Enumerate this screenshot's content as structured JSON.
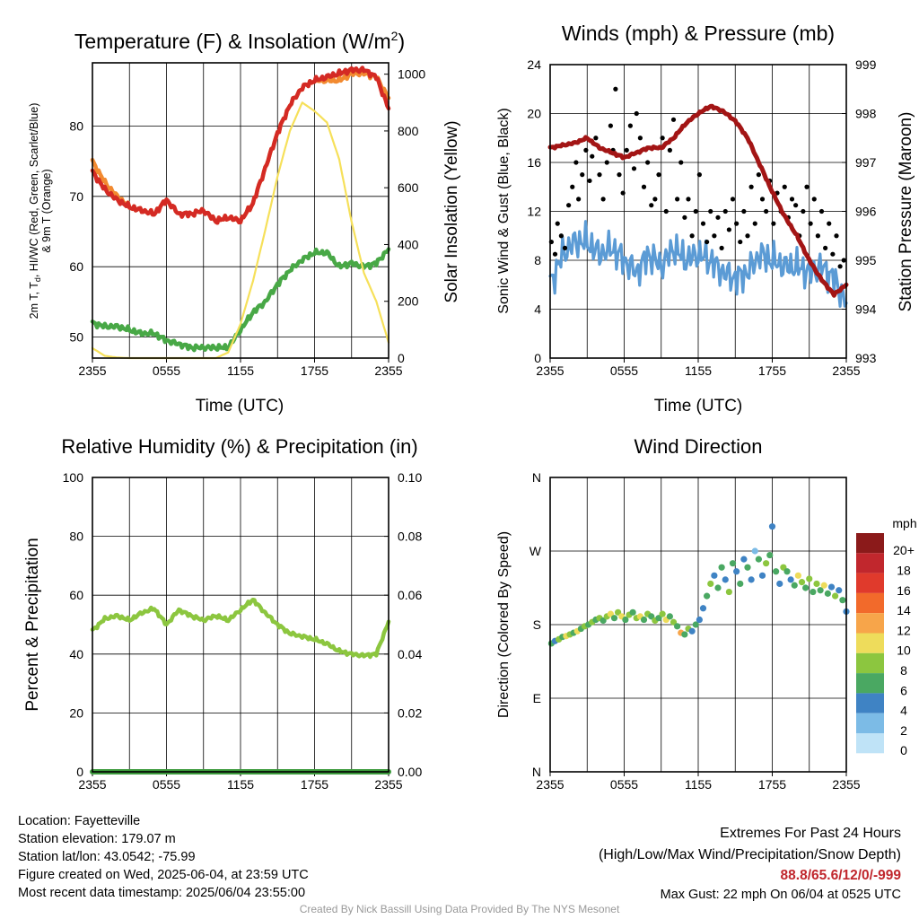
{
  "chart_data": [
    {
      "type": "line",
      "title": "Temperature (F) & Insolation (W/m²)",
      "title_main": "Temperature (F) & Insolation (W/m",
      "title_sup": "2",
      "title_end": ")",
      "xlabel": "Time (UTC)",
      "ylabel": "2m T, Td, HI/WC (Red, Green, Scarlet/Blue) & 9m T (Orange)",
      "ylabel_line1": "2m T, T",
      "ylabel_sub": "d",
      "ylabel_line1_end": ", HI/WC (Red, Green, Scarlet/Blue)",
      "ylabel_line2": "& 9m T (Orange)",
      "y2label": "Solar Insolation (Yellow)",
      "xticks": [
        "2355",
        "0555",
        "1155",
        "1755",
        "2355"
      ],
      "ylim": [
        47,
        89
      ],
      "yticks": [
        "50",
        "60",
        "70",
        "80"
      ],
      "y2lim": [
        0,
        1040
      ],
      "y2ticks": [
        "0",
        "200",
        "400",
        "600",
        "800",
        "1000"
      ],
      "x_hours": [
        0,
        1,
        2,
        3,
        4,
        5,
        6,
        7,
        8,
        9,
        10,
        11,
        12,
        13,
        14,
        15,
        16,
        17,
        18,
        19,
        20,
        21,
        22,
        23,
        24
      ],
      "series": [
        {
          "color": "#f28a30",
          "axis": "left",
          "values": [
            75,
            72,
            70,
            68.5,
            68,
            67.5,
            69.5,
            67.5,
            67.5,
            68,
            66.5,
            67,
            66.5,
            69,
            74,
            79,
            83,
            85.5,
            86.5,
            86.5,
            86.5,
            87.5,
            87.5,
            87,
            84
          ]
        },
        {
          "color": "#d42a24",
          "axis": "left",
          "values": [
            73.5,
            71,
            69.5,
            68.5,
            68,
            67.5,
            69.5,
            67.5,
            67.5,
            68,
            66.5,
            67,
            66.5,
            69,
            74,
            79,
            83,
            85.5,
            86.5,
            87,
            87.5,
            88,
            88,
            87,
            82.5
          ]
        },
        {
          "color": "#48a846",
          "axis": "left",
          "values": [
            52,
            51.5,
            51.5,
            51,
            50.5,
            50.5,
            49.5,
            49,
            48.5,
            48.5,
            48.5,
            48.5,
            51,
            53.5,
            55,
            57.5,
            59.5,
            61,
            62,
            62,
            60,
            60.5,
            60,
            60.5,
            62.5
          ]
        },
        {
          "color": "#f6e05a",
          "axis": "right",
          "values": [
            35,
            8,
            2,
            0,
            0,
            0,
            0,
            0,
            0,
            0,
            0,
            20,
            120,
            270,
            450,
            640,
            800,
            900,
            870,
            830,
            700,
            480,
            300,
            200,
            55
          ]
        }
      ]
    },
    {
      "type": "line",
      "title": "Winds (mph) & Pressure (mb)",
      "xlabel": "Time (UTC)",
      "ylabel": "Sonic Wind & Gust (Blue, Black)",
      "y2label": "Station Pressure (Maroon)",
      "xticks": [
        "2355",
        "0555",
        "1155",
        "1755",
        "2355"
      ],
      "ylim": [
        0,
        24
      ],
      "yticks": [
        "0",
        "4",
        "8",
        "12",
        "16",
        "20",
        "24"
      ],
      "y2lim": [
        993,
        999
      ],
      "y2ticks": [
        "993",
        "994",
        "995",
        "996",
        "997",
        "998",
        "999"
      ],
      "x_hours": [
        0,
        1,
        2,
        3,
        4,
        5,
        6,
        7,
        8,
        9,
        10,
        11,
        12,
        13,
        14,
        15,
        16,
        17,
        18,
        19,
        20,
        21,
        22,
        23,
        24
      ],
      "series": [
        {
          "color": "#5b9bd5",
          "axis": "left",
          "values": [
            6,
            8.5,
            9.5,
            9.5,
            8.5,
            9,
            8,
            7,
            8.5,
            7.5,
            9,
            8,
            8.5,
            8,
            7,
            6.5,
            7,
            8.5,
            8,
            7.5,
            7.5,
            7,
            7.5,
            6.5,
            4.5
          ]
        },
        {
          "color": "#a31515",
          "axis": "right",
          "values": [
            997.3,
            997.35,
            997.4,
            997.5,
            997.3,
            997.2,
            997.1,
            997.2,
            997.3,
            997.3,
            997.5,
            997.8,
            998.0,
            998.15,
            998.05,
            997.85,
            997.5,
            996.95,
            996.4,
            995.9,
            995.5,
            995.0,
            994.6,
            994.3,
            994.5
          ]
        }
      ],
      "gust_points": [
        [
          0.1,
          9.5
        ],
        [
          0.4,
          8.5
        ],
        [
          0.6,
          11
        ],
        [
          0.9,
          10
        ],
        [
          1.2,
          9
        ],
        [
          1.5,
          12.5
        ],
        [
          1.8,
          14
        ],
        [
          2.1,
          16
        ],
        [
          2.3,
          13
        ],
        [
          2.6,
          15
        ],
        [
          2.9,
          17
        ],
        [
          3.2,
          14.5
        ],
        [
          3.4,
          16.5
        ],
        [
          3.7,
          18
        ],
        [
          4.0,
          15
        ],
        [
          4.3,
          13
        ],
        [
          4.6,
          16
        ],
        [
          4.9,
          19
        ],
        [
          5.1,
          17
        ],
        [
          5.3,
          22
        ],
        [
          5.6,
          15
        ],
        [
          5.9,
          13.5
        ],
        [
          6.2,
          17
        ],
        [
          6.5,
          19
        ],
        [
          6.8,
          15.5
        ],
        [
          7.0,
          20
        ],
        [
          7.3,
          18
        ],
        [
          7.6,
          14
        ],
        [
          7.9,
          16
        ],
        [
          8.2,
          12.5
        ],
        [
          8.5,
          13
        ],
        [
          8.8,
          15
        ],
        [
          9.1,
          18
        ],
        [
          9.4,
          12
        ],
        [
          9.7,
          17
        ],
        [
          10.0,
          19.5
        ],
        [
          10.3,
          13
        ],
        [
          10.6,
          16
        ],
        [
          10.9,
          11.5
        ],
        [
          11.2,
          13
        ],
        [
          11.5,
          10
        ],
        [
          11.8,
          12
        ],
        [
          12.1,
          15
        ],
        [
          12.4,
          11
        ],
        [
          12.7,
          9.5
        ],
        [
          13.0,
          12
        ],
        [
          13.3,
          10
        ],
        [
          13.6,
          11.5
        ],
        [
          13.9,
          9
        ],
        [
          14.2,
          12
        ],
        [
          14.5,
          10.5
        ],
        [
          14.8,
          13
        ],
        [
          15.1,
          11
        ],
        [
          15.4,
          9.5
        ],
        [
          15.7,
          12
        ],
        [
          16.0,
          10
        ],
        [
          16.3,
          14
        ],
        [
          16.6,
          11
        ],
        [
          16.9,
          15
        ],
        [
          17.2,
          13
        ],
        [
          17.5,
          12
        ],
        [
          17.8,
          14.5
        ],
        [
          18.1,
          11
        ],
        [
          18.4,
          13.5
        ],
        [
          18.7,
          12
        ],
        [
          19.0,
          14
        ],
        [
          19.3,
          11.5
        ],
        [
          19.6,
          13
        ],
        [
          19.9,
          12.5
        ],
        [
          20.2,
          10
        ],
        [
          20.5,
          12
        ],
        [
          20.8,
          14
        ],
        [
          21.1,
          11
        ],
        [
          21.4,
          13
        ],
        [
          21.7,
          10
        ],
        [
          22.0,
          12
        ],
        [
          22.3,
          9
        ],
        [
          22.6,
          11
        ],
        [
          22.9,
          8.5
        ],
        [
          23.2,
          10
        ],
        [
          23.5,
          7.5
        ],
        [
          23.8,
          8
        ]
      ]
    },
    {
      "type": "line",
      "title": "Relative Humidity (%) & Precipitation (in)",
      "ylabel": "Percent & Precipitation",
      "xticks": [
        "2355",
        "0555",
        "1155",
        "1755",
        "2355"
      ],
      "ylim": [
        0,
        100
      ],
      "yticks": [
        "0",
        "20",
        "40",
        "60",
        "80",
        "100"
      ],
      "y2lim": [
        0,
        0.1
      ],
      "y2ticks": [
        "0.00",
        "0.02",
        "0.04",
        "0.06",
        "0.08",
        "0.10"
      ],
      "x_hours": [
        0,
        1,
        2,
        3,
        4,
        5,
        6,
        7,
        8,
        9,
        10,
        11,
        12,
        13,
        14,
        15,
        16,
        17,
        18,
        19,
        20,
        21,
        22,
        23,
        24
      ],
      "series": [
        {
          "color": "#8cc63f",
          "axis": "left",
          "values": [
            48,
            52,
            53,
            51.5,
            54,
            55.5,
            50,
            55,
            53,
            51.5,
            53,
            51.5,
            55,
            58.5,
            54,
            50,
            47,
            46,
            45,
            43.5,
            41,
            40,
            39.5,
            40,
            51
          ]
        },
        {
          "color": "#3c9a3c",
          "axis": "right",
          "values": [
            0,
            0,
            0,
            0,
            0,
            0,
            0,
            0,
            0,
            0,
            0,
            0,
            0,
            0,
            0,
            0,
            0,
            0,
            0,
            0,
            0,
            0,
            0,
            0,
            0
          ]
        }
      ]
    },
    {
      "type": "scatter",
      "title": "Wind Direction",
      "ylabel": "Direction (Colored By Speed)",
      "xticks": [
        "2355",
        "0555",
        "1155",
        "1755",
        "2355"
      ],
      "yticks": [
        "N",
        "E",
        "S",
        "W",
        "N"
      ],
      "ylim": [
        0,
        360
      ],
      "colorbar_title": "mph",
      "colorbar_labels": [
        "20+",
        "18",
        "16",
        "14",
        "12",
        "10",
        "8",
        "6",
        "4",
        "2",
        "0"
      ],
      "colorbar_colors": [
        "#8b1a1a",
        "#c1272d",
        "#e03a2c",
        "#f26a2b",
        "#f7a54a",
        "#eedc5b",
        "#8cc63f",
        "#4aa862",
        "#3f83c4",
        "#7cbbe6",
        "#bfe3f7"
      ],
      "points": [
        [
          0.1,
          157,
          6
        ],
        [
          0.4,
          160,
          4
        ],
        [
          0.7,
          162,
          8
        ],
        [
          1.0,
          165,
          6
        ],
        [
          1.3,
          166,
          10
        ],
        [
          1.6,
          168,
          8
        ],
        [
          1.9,
          170,
          7
        ],
        [
          2.2,
          172,
          10
        ],
        [
          2.5,
          175,
          6
        ],
        [
          2.8,
          178,
          8
        ],
        [
          3.1,
          180,
          7
        ],
        [
          3.4,
          183,
          9
        ],
        [
          3.7,
          186,
          7
        ],
        [
          4.0,
          188,
          8
        ],
        [
          4.3,
          185,
          6
        ],
        [
          4.6,
          190,
          9
        ],
        [
          4.9,
          193,
          10
        ],
        [
          5.2,
          188,
          7
        ],
        [
          5.5,
          195,
          8
        ],
        [
          5.8,
          190,
          10
        ],
        [
          6.1,
          186,
          6
        ],
        [
          6.4,
          192,
          8
        ],
        [
          6.7,
          195,
          7
        ],
        [
          7.0,
          188,
          9
        ],
        [
          7.3,
          190,
          10
        ],
        [
          7.6,
          186,
          7
        ],
        [
          7.9,
          193,
          8
        ],
        [
          8.2,
          190,
          6
        ],
        [
          8.5,
          185,
          9
        ],
        [
          8.8,
          188,
          7
        ],
        [
          9.1,
          193,
          8
        ],
        [
          9.4,
          186,
          10
        ],
        [
          9.7,
          190,
          7
        ],
        [
          10.0,
          183,
          8
        ],
        [
          10.3,
          178,
          6
        ],
        [
          10.6,
          170,
          12
        ],
        [
          10.9,
          168,
          7
        ],
        [
          11.2,
          175,
          8
        ],
        [
          11.5,
          172,
          4
        ],
        [
          11.8,
          180,
          6
        ],
        [
          12.1,
          186,
          5
        ],
        [
          12.4,
          200,
          4
        ],
        [
          12.7,
          215,
          6
        ],
        [
          13.0,
          230,
          8
        ],
        [
          13.3,
          240,
          5
        ],
        [
          13.6,
          225,
          7
        ],
        [
          13.9,
          250,
          6
        ],
        [
          14.2,
          235,
          4
        ],
        [
          14.5,
          220,
          8
        ],
        [
          14.8,
          255,
          6
        ],
        [
          15.1,
          245,
          5
        ],
        [
          15.4,
          230,
          7
        ],
        [
          15.7,
          260,
          4
        ],
        [
          16.0,
          250,
          6
        ],
        [
          16.3,
          235,
          5
        ],
        [
          16.6,
          270,
          3
        ],
        [
          16.9,
          260,
          6
        ],
        [
          17.2,
          240,
          4
        ],
        [
          17.5,
          255,
          8
        ],
        [
          17.8,
          265,
          6
        ],
        [
          18.0,
          300,
          4
        ],
        [
          18.3,
          245,
          7
        ],
        [
          18.6,
          230,
          5
        ],
        [
          18.9,
          250,
          8
        ],
        [
          19.2,
          245,
          6
        ],
        [
          19.5,
          235,
          4
        ],
        [
          19.8,
          228,
          7
        ],
        [
          20.1,
          240,
          10
        ],
        [
          20.4,
          232,
          8
        ],
        [
          20.7,
          225,
          6
        ],
        [
          21.0,
          236,
          9
        ],
        [
          21.3,
          220,
          7
        ],
        [
          21.6,
          230,
          8
        ],
        [
          21.9,
          222,
          6
        ],
        [
          22.2,
          228,
          10
        ],
        [
          22.5,
          218,
          7
        ],
        [
          22.8,
          226,
          5
        ],
        [
          23.1,
          215,
          9
        ],
        [
          23.4,
          222,
          4
        ],
        [
          23.7,
          210,
          6
        ],
        [
          24.0,
          196,
          4
        ]
      ]
    }
  ],
  "info": {
    "location": "Location: Fayetteville",
    "elevation": "Station elevation: 179.07 m",
    "latlon": "Station lat/lon: 43.0542; -75.99",
    "created": "Figure created on Wed, 2025-06-04, at 23:59 UTC",
    "recent": "Most recent data timestamp: 2025/06/04 23:55:00"
  },
  "extremes": {
    "title": "Extremes For Past 24 Hours",
    "subtitle": "(High/Low/Max Wind/Precipitation/Snow Depth)",
    "values": "88.8/65.6/12/0/-999",
    "gust": "Max Gust: 22 mph On 06/04 at 0525 UTC"
  },
  "credit": "Created By Nick Bassill Using Data Provided By The NYS Mesonet"
}
